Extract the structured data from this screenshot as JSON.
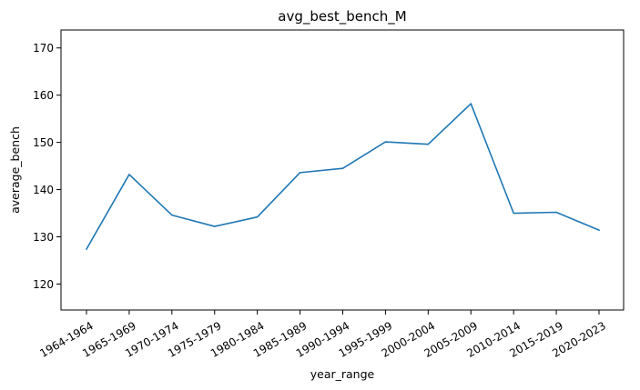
{
  "chart_data": {
    "type": "line",
    "title": "avg_best_bench_M",
    "xlabel": "year_range",
    "ylabel": "average_bench",
    "categories": [
      "1964-1964",
      "1965-1969",
      "1970-1974",
      "1975-1979",
      "1980-1984",
      "1985-1989",
      "1990-1994",
      "1995-1999",
      "2000-2004",
      "2005-2009",
      "2010-2014",
      "2015-2019",
      "2020-2023"
    ],
    "series": [
      {
        "values": [
          127.4,
          143.2,
          134.6,
          132.2,
          134.2,
          143.6,
          144.5,
          150.1,
          149.6,
          158.2,
          135.0,
          135.2,
          131.4
        ]
      }
    ],
    "ylim": [
      114.5,
      173.8
    ],
    "yticks": [
      120,
      130,
      140,
      150,
      160,
      170
    ],
    "grid": false,
    "line_color": "#1f77b4"
  }
}
